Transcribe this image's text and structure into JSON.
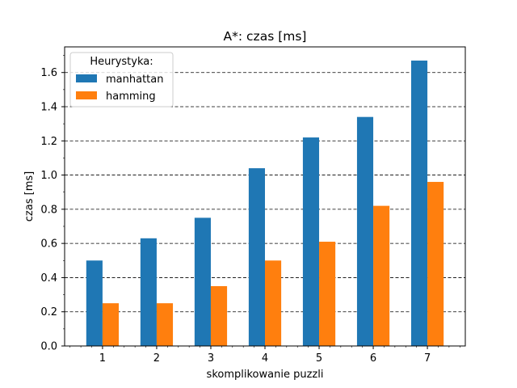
{
  "chart_data": {
    "type": "bar",
    "title": "A*: czas [ms]",
    "xlabel": "skomplikowanie puzzli",
    "ylabel": "czas [ms]",
    "categories": [
      "1",
      "2",
      "3",
      "4",
      "5",
      "6",
      "7"
    ],
    "series": [
      {
        "name": "manhattan",
        "color": "#1f77b4",
        "values": [
          0.5,
          0.63,
          0.75,
          1.04,
          1.22,
          1.34,
          1.67
        ]
      },
      {
        "name": "hamming",
        "color": "#ff7f0e",
        "values": [
          0.25,
          0.25,
          0.35,
          0.5,
          0.61,
          0.82,
          0.96
        ]
      }
    ],
    "ylim": [
      0,
      1.75
    ],
    "yticks": [
      "0.0",
      "0.2",
      "0.4",
      "0.6",
      "0.8",
      "1.0",
      "1.2",
      "1.4",
      "1.6"
    ],
    "grid": {
      "axis": "y",
      "style": "dashed",
      "color": "#000000"
    },
    "legend": {
      "title": "Heurystyka:",
      "placement": "top-left"
    }
  }
}
